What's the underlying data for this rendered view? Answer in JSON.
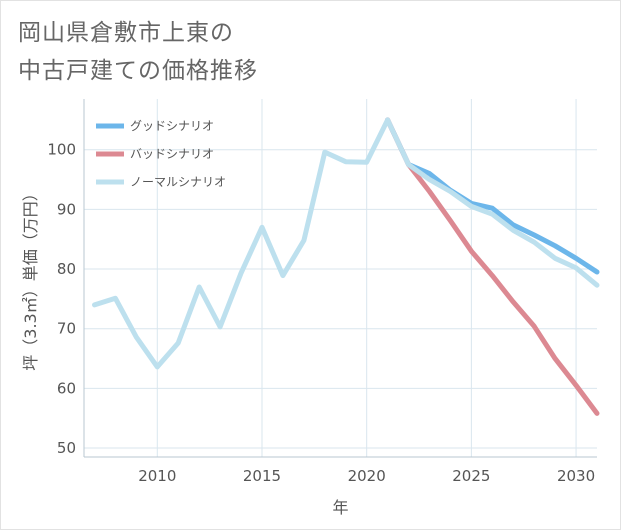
{
  "title": {
    "line1": "岡山県倉敷市上東の",
    "line2": "中古戸建ての価格推移"
  },
  "chart_data": {
    "type": "line",
    "xlabel": "年",
    "ylabel": "坪（3.3㎡）単価（万円）",
    "xlim": [
      2006.5,
      2031
    ],
    "ylim": [
      48.5,
      108.5
    ],
    "xticks": [
      2010,
      2015,
      2020,
      2025,
      2030
    ],
    "yticks": [
      50,
      60,
      70,
      80,
      90,
      100
    ],
    "grid": true,
    "legend_position": "top-left",
    "series": [
      {
        "name": "グッドシナリオ",
        "color": "#6cb6ea",
        "x": [
          2021,
          2022,
          2023,
          2024,
          2025,
          2026,
          2027,
          2028,
          2029,
          2030,
          2031
        ],
        "values": [
          105,
          97.5,
          96,
          93.2,
          91,
          90.2,
          87.4,
          85.7,
          83.9,
          81.8,
          79.5
        ]
      },
      {
        "name": "バッドシナリオ",
        "color": "#dc8992",
        "x": [
          2021,
          2022,
          2023,
          2024,
          2025,
          2026,
          2027,
          2028,
          2029,
          2030,
          2031
        ],
        "values": [
          105,
          97.5,
          93,
          88.1,
          83,
          78.9,
          74.5,
          70.4,
          65,
          60.5,
          55.8
        ]
      },
      {
        "name": "ノーマルシナリオ",
        "color": "#bde0ee",
        "x": [
          2007,
          2008,
          2009,
          2010,
          2011,
          2012,
          2013,
          2014,
          2015,
          2016,
          2017,
          2018,
          2019,
          2020,
          2021,
          2022,
          2023,
          2024,
          2025,
          2026,
          2027,
          2028,
          2029,
          2030,
          2031
        ],
        "values": [
          74,
          75.1,
          68.6,
          63.6,
          67.6,
          77,
          70.3,
          79.3,
          87,
          78.9,
          84.8,
          99.6,
          98,
          97.9,
          105,
          97.5,
          95,
          93,
          90.5,
          89.2,
          86.5,
          84.5,
          81.8,
          80.2,
          77.3
        ]
      }
    ]
  }
}
